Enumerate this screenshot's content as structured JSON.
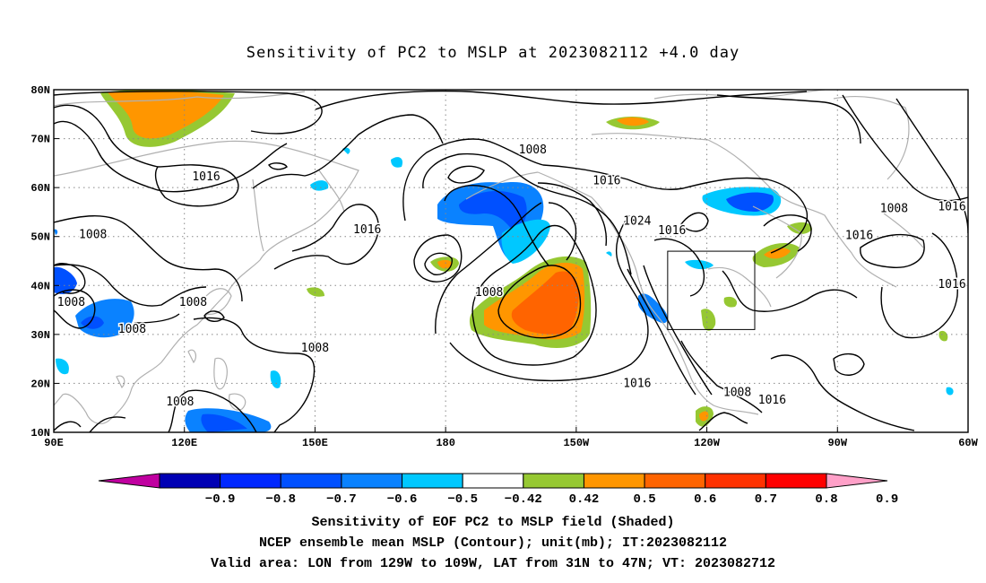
{
  "title": "Sensitivity of PC2 to MSLP at 2023082112 +4.0 day",
  "map": {
    "lon_range": [
      90,
      300
    ],
    "lat_range": [
      10,
      80
    ],
    "lat_ticks": [
      {
        "value": 80,
        "label": "80N"
      },
      {
        "value": 70,
        "label": "70N"
      },
      {
        "value": 60,
        "label": "60N"
      },
      {
        "value": 50,
        "label": "50N"
      },
      {
        "value": 40,
        "label": "40N"
      },
      {
        "value": 30,
        "label": "30N"
      },
      {
        "value": 20,
        "label": "20N"
      },
      {
        "value": 10,
        "label": "10N"
      }
    ],
    "lon_ticks": [
      {
        "value": 90,
        "label": "90E"
      },
      {
        "value": 120,
        "label": "120E"
      },
      {
        "value": 150,
        "label": "150E"
      },
      {
        "value": 180,
        "label": "180"
      },
      {
        "value": 210,
        "label": "150W"
      },
      {
        "value": 240,
        "label": "120W"
      },
      {
        "value": 270,
        "label": "90W"
      },
      {
        "value": 300,
        "label": "60W"
      }
    ],
    "grid_lines": "dotted",
    "verification_box": {
      "lon": [
        231,
        251
      ],
      "lat": [
        31,
        47
      ]
    },
    "contour_labels": [
      {
        "lon": 200,
        "lat": 67.7,
        "text": "1008"
      },
      {
        "lon": 125,
        "lat": 62.2,
        "text": "1016"
      },
      {
        "lon": 217,
        "lat": 61.4,
        "text": "1016"
      },
      {
        "lon": 224,
        "lat": 53.2,
        "text": "1024"
      },
      {
        "lon": 232,
        "lat": 51.2,
        "text": "1016"
      },
      {
        "lon": 162,
        "lat": 51.4,
        "text": "1016"
      },
      {
        "lon": 304,
        "lat": 56.1,
        "text": "1016"
      },
      {
        "lon": 283,
        "lat": 55.7,
        "text": "1008"
      },
      {
        "lon": 275,
        "lat": 50.2,
        "text": "1016"
      },
      {
        "lon": 300,
        "lat": 40.2,
        "text": "1016"
      },
      {
        "lon": 99,
        "lat": 50.4,
        "text": "1008"
      },
      {
        "lon": 190,
        "lat": 38.6,
        "text": "1008"
      },
      {
        "lon": 94,
        "lat": 36.6,
        "text": "1008"
      },
      {
        "lon": 108,
        "lat": 31.1,
        "text": "1008"
      },
      {
        "lon": 122,
        "lat": 36.6,
        "text": "1008"
      },
      {
        "lon": 150,
        "lat": 27.2,
        "text": "1008"
      },
      {
        "lon": 119,
        "lat": 16.2,
        "text": "1008"
      },
      {
        "lon": 224,
        "lat": 20.0,
        "text": "1016"
      },
      {
        "lon": 247,
        "lat": 18.2,
        "text": "1008"
      },
      {
        "lon": 255,
        "lat": 16.6,
        "text": "1016"
      }
    ]
  },
  "colorbar": {
    "ticks": [
      "−0.9",
      "−0.8",
      "−0.7",
      "−0.6",
      "−0.5",
      "−0.42",
      "0.42",
      "0.5",
      "0.6",
      "0.7",
      "0.8",
      "0.9"
    ],
    "colors": [
      "#c000a0",
      "#0000b4",
      "#0028ff",
      "#0050ff",
      "#0a82ff",
      "#00c8ff",
      "#ffffff",
      "#96c832",
      "#ff9600",
      "#ff6400",
      "#ff3200",
      "#ff0000",
      "#ffa0c8"
    ]
  },
  "footer": {
    "line1": "Sensitivity of EOF PC2 to MSLP field (Shaded)",
    "line2": "NCEP ensemble mean MSLP (Contour); unit(mb); IT:2023082112",
    "line3": "Valid area: LON from 129W to 109W, LAT from 31N to 47N; VT: 2023082712"
  }
}
